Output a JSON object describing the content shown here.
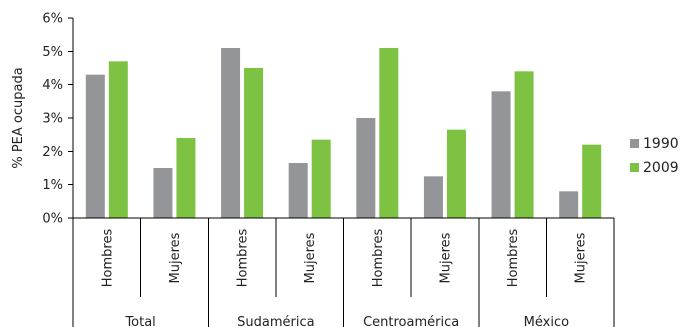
{
  "chart_data": {
    "type": "bar",
    "title": "",
    "ylabel": "% PEA ocupada",
    "ylim": [
      0,
      6
    ],
    "yticks": [
      "0%",
      "1%",
      "2%",
      "3%",
      "4%",
      "5%",
      "6%"
    ],
    "groups": [
      {
        "name": "Total",
        "categories": [
          "Hombres",
          "Mujeres"
        ]
      },
      {
        "name": "Sudamérica",
        "categories": [
          "Hombres",
          "Mujeres"
        ]
      },
      {
        "name": "Centroamérica",
        "categories": [
          "Hombres",
          "Mujeres"
        ]
      },
      {
        "name": "México",
        "categories": [
          "Hombres",
          "Mujeres"
        ]
      }
    ],
    "series": [
      {
        "name": "1990",
        "color": "#939598",
        "values": [
          4.3,
          1.5,
          5.1,
          1.65,
          3.0,
          1.25,
          3.8,
          0.8
        ]
      },
      {
        "name": "2009",
        "color": "#7dc242",
        "values": [
          4.7,
          2.4,
          4.5,
          2.35,
          5.1,
          2.65,
          4.4,
          2.2
        ]
      }
    ],
    "legend_position": "right",
    "grid": false
  }
}
